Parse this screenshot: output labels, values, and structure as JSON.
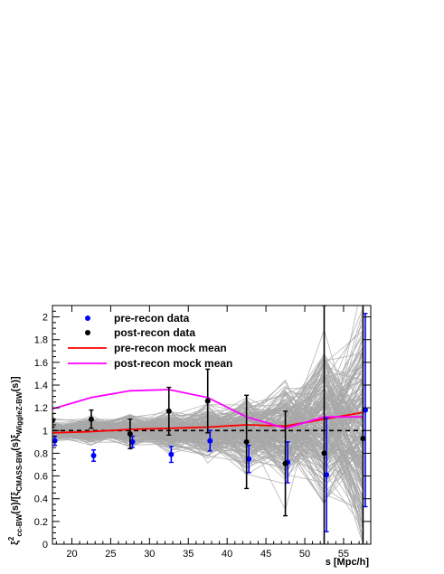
{
  "chart_data": {
    "type": "scatter",
    "title": "",
    "xlabel": "s [Mpc/h]",
    "ylabel_parts": {
      "xi": "ξ",
      "sup2": "2",
      "sub_cc": "cc-BW",
      "mid1": "(s)/[",
      "sub_cmass": "CMASS-BW",
      "mid2": "(s)",
      "sub_wiggle": "WiggleZ-BW",
      "end": "(s)]"
    },
    "xlim": [
      17.5,
      58.5
    ],
    "ylim": [
      0,
      2.1
    ],
    "x_ticks": [
      20,
      25,
      30,
      35,
      40,
      45,
      50,
      55
    ],
    "y_ticks": [
      0,
      0.2,
      0.4,
      0.6,
      0.8,
      1,
      1.2,
      1.4,
      1.6,
      1.8,
      2
    ],
    "reference_line": {
      "y": 1,
      "style": "dashed",
      "color": "#000000"
    },
    "mock_band": {
      "color": "#a8a8a8",
      "description_x": [
        17.5,
        22.5,
        27.5,
        32.5,
        37.5,
        42.5,
        47.5,
        52.5,
        57.5
      ]
    },
    "legend_position": "top-left",
    "series": [
      {
        "name": "pre-recon data",
        "kind": "points",
        "color": "#0000ff",
        "x": [
          17.8,
          22.8,
          27.8,
          32.8,
          37.8,
          42.8,
          47.8,
          52.8,
          57.8
        ],
        "y": [
          0.91,
          0.78,
          0.9,
          0.79,
          0.91,
          0.75,
          0.72,
          0.61,
          1.18
        ],
        "err": [
          0.04,
          0.05,
          0.05,
          0.07,
          0.09,
          0.12,
          0.18,
          0.5,
          0.85
        ]
      },
      {
        "name": "post-recon data",
        "kind": "points",
        "color": "#000000",
        "x": [
          17.5,
          22.5,
          27.5,
          32.5,
          37.5,
          42.5,
          47.5,
          52.5,
          57.5
        ],
        "y": [
          1.09,
          1.1,
          0.97,
          1.17,
          1.26,
          0.9,
          0.71,
          0.8,
          0.93
        ],
        "err": [
          0.06,
          0.08,
          0.13,
          0.21,
          0.28,
          0.41,
          0.46,
          1.3,
          1.2
        ]
      },
      {
        "name": "pre-recon mock mean",
        "kind": "line",
        "color": "#ff0000",
        "x": [
          17.5,
          22.5,
          27.5,
          32.5,
          37.5,
          42.5,
          47.5,
          52.5,
          57.5
        ],
        "y": [
          0.98,
          0.99,
          1.01,
          1.02,
          1.03,
          1.05,
          1.04,
          1.1,
          1.16
        ]
      },
      {
        "name": "post-recon mock mean",
        "kind": "line",
        "color": "#ff00ff",
        "x": [
          17.5,
          22.5,
          27.5,
          32.5,
          37.5,
          42.5,
          47.5,
          52.5,
          57.5
        ],
        "y": [
          1.19,
          1.29,
          1.35,
          1.36,
          1.29,
          1.12,
          1.02,
          1.12,
          1.12
        ]
      }
    ]
  }
}
